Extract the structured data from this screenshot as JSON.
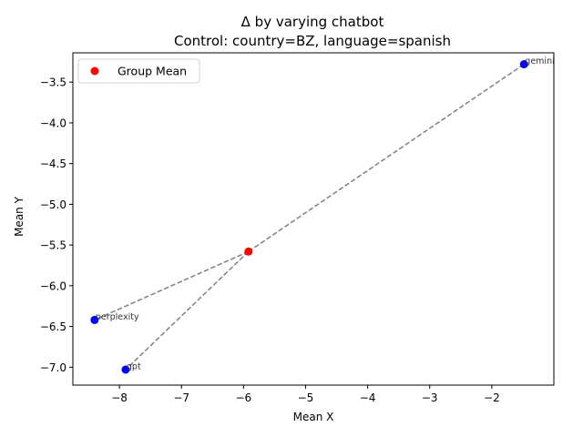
{
  "chart_data": {
    "type": "scatter",
    "title": "Δ by varying chatbot",
    "subtitle": "Control: country=BZ, language=spanish",
    "xlabel": "Mean X",
    "ylabel": "Mean Y",
    "xlim": [
      -8.75,
      -1.0
    ],
    "ylim": [
      -7.22,
      -3.14
    ],
    "xticks": [
      -8,
      -7,
      -6,
      -5,
      -4,
      -3,
      -2
    ],
    "yticks": [
      -3.5,
      -4.0,
      -4.5,
      -5.0,
      -5.5,
      -6.0,
      -6.5,
      -7.0
    ],
    "xtick_labels": [
      "−8",
      "−7",
      "−6",
      "−5",
      "−4",
      "−3",
      "−2"
    ],
    "ytick_labels": [
      "−3.5",
      "−4.0",
      "−4.5",
      "−5.0",
      "−5.5",
      "−6.0",
      "−6.5",
      "−7.0"
    ],
    "grid": false,
    "legend_position": "top-left",
    "legend": [
      {
        "name": "Group Mean",
        "color": "#ff0000"
      }
    ],
    "mean": {
      "x": -5.92,
      "y": -5.58,
      "color": "#ff0000"
    },
    "points": [
      {
        "label": "gemini",
        "x": -1.48,
        "y": -3.28,
        "color": "#0000ff"
      },
      {
        "label": "perplexity",
        "x": -8.4,
        "y": -6.42,
        "color": "#0000ff"
      },
      {
        "label": "gpt",
        "x": -7.9,
        "y": -7.03,
        "color": "#0000ff"
      }
    ],
    "connector_color": "#808080"
  }
}
